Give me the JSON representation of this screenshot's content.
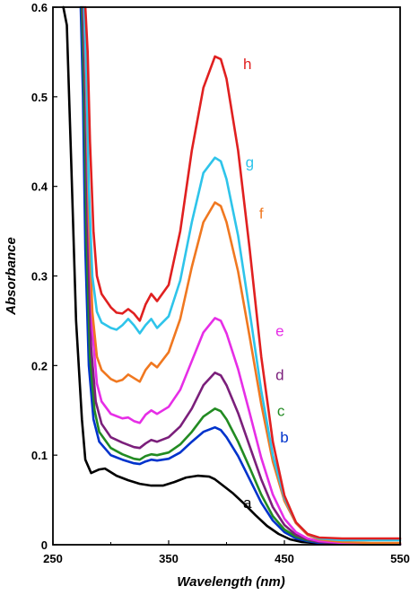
{
  "chart_data": {
    "type": "line",
    "xlabel": "Wavelength (nm)",
    "ylabel": "Absorbance",
    "xlim": [
      250,
      550
    ],
    "ylim": [
      0,
      0.6
    ],
    "x_ticks": [
      250,
      350,
      450,
      550
    ],
    "y_ticks": [
      0,
      0.1,
      0.2,
      0.3,
      0.4,
      0.5,
      0.6
    ],
    "x_tick_labels": [
      "250",
      "350",
      "450",
      "550"
    ],
    "y_tick_labels": [
      "0",
      "0.1",
      "0.2",
      "0.3",
      "0.4",
      "0.5",
      "0.6"
    ],
    "grid": false,
    "series": [
      {
        "name": "a",
        "color": "#000000",
        "x": [
          259,
          262,
          266,
          270,
          275,
          278,
          283,
          290,
          295,
          305,
          315,
          325,
          335,
          345,
          355,
          365,
          375,
          385,
          390,
          395,
          405,
          415,
          425,
          435,
          445,
          455,
          465,
          475,
          485,
          500,
          520,
          550
        ],
        "y": [
          0.6,
          0.58,
          0.42,
          0.25,
          0.14,
          0.095,
          0.08,
          0.084,
          0.085,
          0.077,
          0.072,
          0.068,
          0.066,
          0.066,
          0.07,
          0.075,
          0.077,
          0.076,
          0.073,
          0.068,
          0.058,
          0.046,
          0.033,
          0.021,
          0.012,
          0.006,
          0.003,
          0.002,
          0.001,
          0.001,
          0.0005,
          0.0005
        ]
      },
      {
        "name": "b",
        "color": "#0033cc",
        "x": [
          274,
          276,
          278,
          281,
          285,
          290,
          300,
          310,
          320,
          325,
          330,
          335,
          340,
          350,
          360,
          370,
          380,
          390,
          395,
          400,
          410,
          420,
          430,
          440,
          450,
          460,
          470,
          480,
          500,
          525,
          550
        ],
        "y": [
          0.6,
          0.5,
          0.33,
          0.2,
          0.14,
          0.115,
          0.1,
          0.095,
          0.091,
          0.09,
          0.093,
          0.095,
          0.094,
          0.096,
          0.103,
          0.115,
          0.126,
          0.131,
          0.128,
          0.12,
          0.099,
          0.073,
          0.047,
          0.027,
          0.014,
          0.007,
          0.004,
          0.002,
          0.001,
          0.0005,
          0.0005
        ]
      },
      {
        "name": "c",
        "color": "#228b22",
        "x": [
          275,
          277,
          279,
          282,
          286,
          290,
          300,
          310,
          320,
          325,
          330,
          335,
          340,
          350,
          360,
          370,
          380,
          390,
          395,
          400,
          410,
          420,
          430,
          440,
          450,
          460,
          470,
          480,
          500,
          525,
          550
        ],
        "y": [
          0.6,
          0.5,
          0.34,
          0.21,
          0.15,
          0.126,
          0.108,
          0.101,
          0.096,
          0.095,
          0.099,
          0.101,
          0.1,
          0.103,
          0.112,
          0.126,
          0.143,
          0.152,
          0.149,
          0.14,
          0.115,
          0.086,
          0.056,
          0.032,
          0.017,
          0.009,
          0.005,
          0.003,
          0.001,
          0.0005,
          0.0005
        ]
      },
      {
        "name": "d",
        "color": "#7b1f7b",
        "x": [
          276,
          278,
          280,
          283,
          287,
          292,
          300,
          310,
          320,
          325,
          330,
          335,
          340,
          350,
          360,
          370,
          380,
          390,
          395,
          400,
          410,
          420,
          430,
          440,
          450,
          460,
          470,
          480,
          500,
          525,
          550
        ],
        "y": [
          0.6,
          0.5,
          0.35,
          0.22,
          0.16,
          0.135,
          0.12,
          0.114,
          0.109,
          0.108,
          0.113,
          0.117,
          0.115,
          0.12,
          0.132,
          0.152,
          0.178,
          0.192,
          0.189,
          0.178,
          0.147,
          0.11,
          0.073,
          0.042,
          0.022,
          0.011,
          0.006,
          0.003,
          0.001,
          0.0005,
          0.0005
        ]
      },
      {
        "name": "e",
        "color": "#e62ee6",
        "x": [
          277,
          279,
          281,
          284,
          288,
          292,
          300,
          310,
          315,
          320,
          325,
          330,
          335,
          340,
          350,
          360,
          370,
          380,
          390,
          395,
          400,
          410,
          420,
          430,
          440,
          450,
          460,
          470,
          480,
          500,
          525,
          550
        ],
        "y": [
          0.6,
          0.5,
          0.36,
          0.24,
          0.18,
          0.16,
          0.146,
          0.141,
          0.142,
          0.138,
          0.136,
          0.145,
          0.15,
          0.146,
          0.154,
          0.173,
          0.205,
          0.237,
          0.253,
          0.25,
          0.236,
          0.196,
          0.147,
          0.097,
          0.056,
          0.029,
          0.014,
          0.007,
          0.004,
          0.002,
          0.001,
          0.001
        ]
      },
      {
        "name": "f",
        "color": "#f07820",
        "x": [
          277,
          279,
          281,
          284,
          288,
          292,
          300,
          305,
          310,
          315,
          320,
          325,
          330,
          335,
          340,
          350,
          360,
          370,
          380,
          390,
          395,
          400,
          410,
          420,
          430,
          440,
          450,
          460,
          470,
          480,
          500,
          525,
          550
        ],
        "y": [
          0.6,
          0.5,
          0.37,
          0.26,
          0.21,
          0.195,
          0.185,
          0.182,
          0.184,
          0.19,
          0.186,
          0.182,
          0.195,
          0.203,
          0.198,
          0.215,
          0.252,
          0.31,
          0.36,
          0.382,
          0.378,
          0.36,
          0.305,
          0.232,
          0.157,
          0.093,
          0.049,
          0.024,
          0.011,
          0.006,
          0.003,
          0.002,
          0.002
        ]
      },
      {
        "name": "g",
        "color": "#2ec4ea",
        "x": [
          277,
          279,
          281,
          284,
          288,
          292,
          300,
          305,
          310,
          315,
          320,
          325,
          330,
          335,
          340,
          350,
          360,
          370,
          380,
          390,
          395,
          400,
          410,
          420,
          430,
          440,
          450,
          460,
          470,
          480,
          500,
          525,
          550
        ],
        "y": [
          0.6,
          0.52,
          0.4,
          0.3,
          0.26,
          0.248,
          0.242,
          0.24,
          0.245,
          0.252,
          0.245,
          0.236,
          0.245,
          0.252,
          0.242,
          0.255,
          0.295,
          0.36,
          0.415,
          0.432,
          0.428,
          0.408,
          0.345,
          0.26,
          0.172,
          0.1,
          0.052,
          0.025,
          0.012,
          0.007,
          0.005,
          0.005,
          0.005
        ]
      },
      {
        "name": "h",
        "color": "#e02020",
        "x": [
          278,
          280,
          282,
          285,
          288,
          292,
          300,
          305,
          310,
          315,
          320,
          325,
          330,
          335,
          340,
          350,
          360,
          370,
          380,
          390,
          395,
          400,
          410,
          420,
          430,
          440,
          450,
          460,
          470,
          480,
          500,
          525,
          550
        ],
        "y": [
          0.6,
          0.55,
          0.45,
          0.35,
          0.3,
          0.28,
          0.265,
          0.259,
          0.258,
          0.263,
          0.258,
          0.25,
          0.268,
          0.28,
          0.272,
          0.29,
          0.35,
          0.44,
          0.51,
          0.545,
          0.542,
          0.52,
          0.44,
          0.33,
          0.21,
          0.115,
          0.055,
          0.025,
          0.012,
          0.008,
          0.007,
          0.007,
          0.007
        ]
      }
    ],
    "series_labels": [
      {
        "text": "a",
        "x": 418,
        "y": 0.047
      },
      {
        "text": "b",
        "x": 450,
        "y": 0.12
      },
      {
        "text": "c",
        "x": 447,
        "y": 0.15
      },
      {
        "text": "d",
        "x": 446,
        "y": 0.19
      },
      {
        "text": "e",
        "x": 446,
        "y": 0.239
      },
      {
        "text": "f",
        "x": 430,
        "y": 0.37
      },
      {
        "text": "g",
        "x": 420,
        "y": 0.427
      },
      {
        "text": "h",
        "x": 418,
        "y": 0.537
      }
    ]
  }
}
